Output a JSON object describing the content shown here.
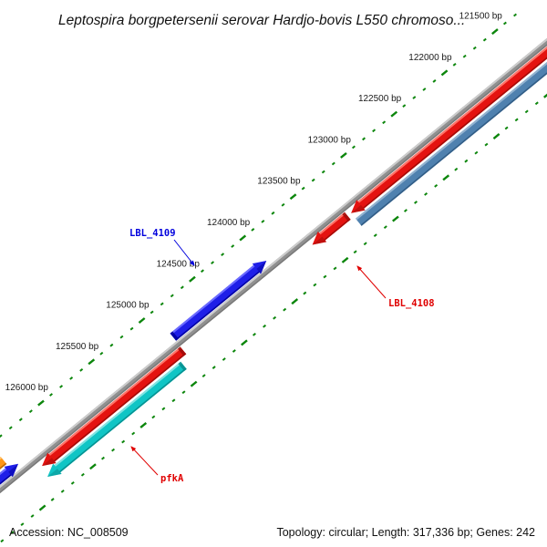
{
  "title": "Leptospira borgpetersenii serovar Hardjo-bovis L550 chromoso...",
  "footer": {
    "accession": "Accession: NC_008509",
    "stats": "Topology: circular; Length: 317,336 bp; Genes: 242"
  },
  "ruler": {
    "unit": "bp",
    "major_interval_bp": 500,
    "minor_interval_bp": 100,
    "tick_color": "#0c860c",
    "labels": [
      "121500 bp",
      "122000 bp",
      "122500 bp",
      "123000 bp",
      "123500 bp",
      "124000 bp",
      "124500 bp",
      "125000 bp",
      "125500 bp",
      "126000 bp"
    ]
  },
  "backbone": {
    "color": "#909090",
    "highlight": "#cccccc",
    "shadow": "#787878"
  },
  "genes": [
    {
      "name": "",
      "bp_start": 121100,
      "bp_end": 123236,
      "side": "lower",
      "track": 1,
      "arrow": "end",
      "colors": {
        "main": "#e41310",
        "hi": "#ff7368",
        "dark": "#9c0b08"
      }
    },
    {
      "name": "",
      "bp_start": 121100,
      "bp_end": 123236,
      "side": "lower",
      "track": 2,
      "arrow": "none",
      "colors": {
        "main": "#4f81af",
        "hi": "#93b3d0",
        "dark": "#2f5a82"
      }
    },
    {
      "name": "LBL_4108",
      "bp_start": 123270,
      "bp_end": 123620,
      "side": "lower",
      "track": 1,
      "arrow": "end",
      "colors": {
        "main": "#e41310",
        "hi": "#ff7368",
        "dark": "#9c0b08"
      }
    },
    {
      "name": "LBL_4109",
      "bp_start": 123970,
      "bp_end": 124895,
      "side": "upper",
      "track": 1,
      "arrow": "start",
      "colors": {
        "main": "#1f1fe8",
        "hi": "#6b6bff",
        "dark": "#00009a"
      }
    },
    {
      "name": "",
      "bp_start": 124900,
      "bp_end": 126300,
      "side": "lower",
      "track": 1,
      "arrow": "end",
      "colors": {
        "main": "#e41310",
        "hi": "#ff7368",
        "dark": "#9c0b08"
      }
    },
    {
      "name": "pfkA",
      "bp_start": 124970,
      "bp_end": 126320,
      "side": "lower",
      "track": 2,
      "arrow": "end",
      "colors": {
        "main": "#10c5c5",
        "hi": "#82e4e2",
        "dark": "#078c8c"
      }
    },
    {
      "name": "",
      "bp_start": 126430,
      "bp_end": 126960,
      "side": "upper",
      "track": 1,
      "arrow": "start",
      "colors": {
        "main": "#1f1fe8",
        "hi": "#6b6bff",
        "dark": "#00009a"
      }
    },
    {
      "name": "",
      "bp_start": 126500,
      "bp_end": 126990,
      "side": "upper",
      "track": 2,
      "arrow": "none",
      "colors": {
        "main": "#ff9716",
        "hi": "#ffc36e",
        "dark": "#b86400"
      }
    },
    {
      "name": "",
      "bp_start": 126560,
      "bp_end": 127030,
      "side": "upper",
      "track": 3,
      "arrow": "none",
      "colors": {
        "main": "#39b939",
        "hi": "#8fdc8f",
        "dark": "#1f7a1f"
      }
    }
  ],
  "labels": [
    {
      "text": "LBL_4109",
      "color": "#0000dd"
    },
    {
      "text": "LBL_4108",
      "color": "#e00000"
    },
    {
      "text": "pfkA",
      "color": "#e00000"
    }
  ]
}
